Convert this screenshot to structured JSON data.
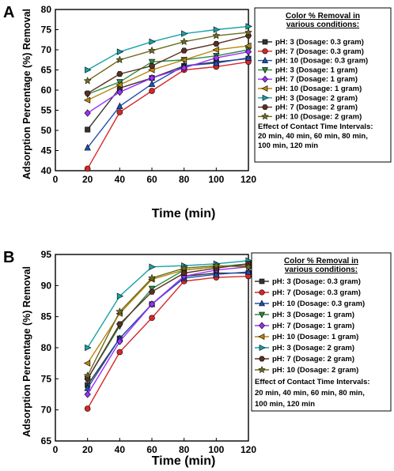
{
  "series_styles": [
    {
      "color": "#333333",
      "marker": "square"
    },
    {
      "color": "#d62728",
      "marker": "circle"
    },
    {
      "color": "#1f4fb4",
      "marker": "triangle-up"
    },
    {
      "color": "#2e8b3e",
      "marker": "triangle-down"
    },
    {
      "color": "#9b30ff",
      "marker": "diamond"
    },
    {
      "color": "#b8860b",
      "marker": "triangle-left"
    },
    {
      "color": "#17a2a8",
      "marker": "triangle-right"
    },
    {
      "color": "#5a3020",
      "marker": "hexagon"
    },
    {
      "color": "#6b6b1f",
      "marker": "star"
    }
  ],
  "chart_data": [
    {
      "panel": "A",
      "type": "line",
      "xlabel": "Time (min)",
      "ylabel": "Adsorption Percentage (%) Removal",
      "xlim": [
        0,
        120
      ],
      "ylim": [
        40,
        80
      ],
      "x_ticks": [
        "0",
        "20",
        "40",
        "60",
        "80",
        "100",
        "120"
      ],
      "y_ticks": [
        "40",
        "45",
        "50",
        "55",
        "60",
        "65",
        "70",
        "75",
        "80"
      ],
      "x": [
        20,
        40,
        60,
        80,
        100,
        120
      ],
      "legend_title": "Color % Removal in various conditions:",
      "legend_note": [
        "Effect of Contact Time Intervals:",
        "20 min, 40 min, 60 min, 80 min,",
        "100 min, 120 min"
      ],
      "series": [
        {
          "name": "pH: 3 (Dosage: 0.3 gram)",
          "values": [
            50.2,
            60.5,
            63.0,
            66.0,
            67.0,
            67.8
          ]
        },
        {
          "name": "pH: 7 (Dosage: 0.3 gram)",
          "values": [
            40.5,
            54.5,
            59.8,
            65.0,
            65.8,
            67.0
          ]
        },
        {
          "name": "pH: 10 (Dosage: 0.3 gram)",
          "values": [
            45.7,
            56.0,
            61.5,
            66.0,
            66.7,
            68.0
          ]
        },
        {
          "name": "pH: 3 (Dosage: 1 gram)",
          "values": [
            59.0,
            62.0,
            67.0,
            67.5,
            68.5,
            70.0
          ]
        },
        {
          "name": "pH: 7 (Dosage: 1 gram)",
          "values": [
            54.3,
            59.5,
            63.0,
            65.5,
            68.0,
            69.5
          ]
        },
        {
          "name": "pH: 10 (Dosage: 1 gram)",
          "values": [
            57.5,
            61.3,
            65.0,
            67.5,
            70.0,
            71.0
          ]
        },
        {
          "name": "pH: 3 (Dosage: 2 gram)",
          "values": [
            65.0,
            69.5,
            72.0,
            74.0,
            75.0,
            75.8
          ]
        },
        {
          "name": "pH: 7 (Dosage: 2 gram)",
          "values": [
            59.2,
            64.0,
            66.0,
            69.8,
            71.5,
            73.5
          ]
        },
        {
          "name": "pH: 10 (Dosage: 2 gram)",
          "values": [
            62.3,
            67.5,
            69.8,
            72.0,
            73.5,
            74.3
          ]
        }
      ]
    },
    {
      "panel": "B",
      "type": "line",
      "xlabel": "Time (min)",
      "ylabel": "Adsorption Percentage (%) Removal",
      "xlim": [
        0,
        120
      ],
      "ylim": [
        65,
        95
      ],
      "x_ticks": [
        "0",
        "20",
        "40",
        "60",
        "80",
        "100",
        "120"
      ],
      "y_ticks": [
        "65",
        "70",
        "75",
        "80",
        "85",
        "90",
        "95"
      ],
      "x": [
        20,
        40,
        60,
        80,
        100,
        120
      ],
      "legend_title": "Color % Removal in various conditions:",
      "legend_note": [
        "Effect of Contact Time Intervals:",
        "20 min, 40 min, 60 min, 80 min,",
        "100 min, 120 min"
      ],
      "series": [
        {
          "name": "pH: 3 (Dosage: 0.3 gram)",
          "values": [
            74.0,
            81.5,
            87.0,
            91.5,
            92.0,
            92.0
          ]
        },
        {
          "name": "pH: 7 (Dosage: 0.3 gram)",
          "values": [
            70.2,
            79.3,
            84.8,
            90.7,
            91.3,
            91.5
          ]
        },
        {
          "name": "pH: 10 (Dosage: 0.3 gram)",
          "values": [
            73.5,
            81.5,
            87.0,
            91.2,
            91.8,
            92.2
          ]
        },
        {
          "name": "pH: 3 (Dosage: 1 gram)",
          "values": [
            75.0,
            83.5,
            89.5,
            92.5,
            93.0,
            93.5
          ]
        },
        {
          "name": "pH: 7 (Dosage: 1 gram)",
          "values": [
            72.5,
            81.0,
            87.0,
            91.5,
            92.5,
            93.0
          ]
        },
        {
          "name": "pH: 10 (Dosage: 1 gram)",
          "values": [
            77.5,
            85.5,
            91.0,
            92.5,
            93.0,
            93.2
          ]
        },
        {
          "name": "pH: 3 (Dosage: 2 gram)",
          "values": [
            80.0,
            88.3,
            93.0,
            93.2,
            93.5,
            94.0
          ]
        },
        {
          "name": "pH: 7 (Dosage: 2 gram)",
          "values": [
            75.0,
            83.8,
            89.0,
            92.0,
            92.8,
            93.5
          ]
        },
        {
          "name": "pH: 10 (Dosage: 2 gram)",
          "values": [
            75.5,
            85.8,
            91.2,
            92.8,
            93.2,
            93.0
          ]
        }
      ]
    }
  ]
}
